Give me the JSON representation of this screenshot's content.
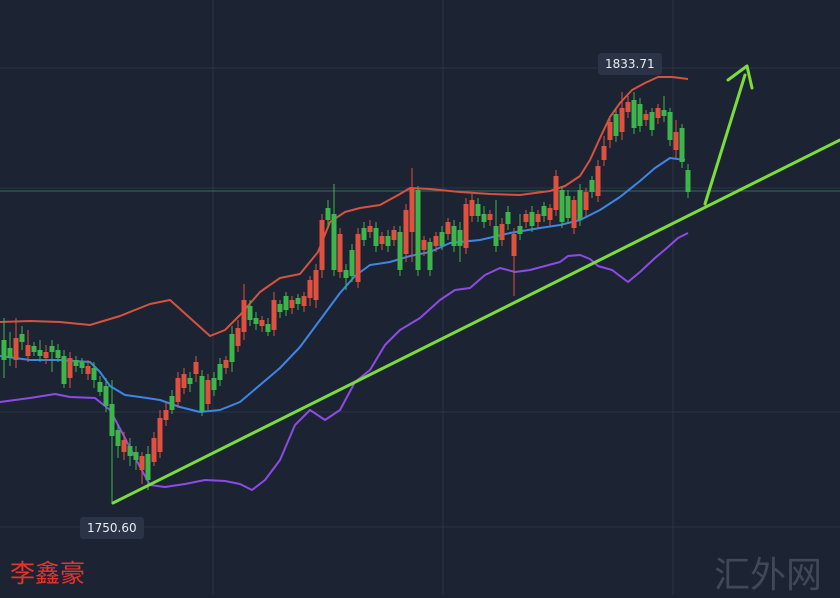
{
  "chart_data": {
    "type": "candlestick",
    "high_label": "1833.71",
    "low_label": "1750.60",
    "colors": {
      "up": "#e0503f",
      "down": "#3cb54a",
      "ma": "#3d86e6",
      "upper_band": "#d6523e",
      "lower_band": "#8d4be6",
      "trend": "#7bdc3c",
      "grid": "#2c3546",
      "background": "#1c2433"
    },
    "grid": true
  },
  "author": "李鑫豪",
  "watermark": "汇外网"
}
